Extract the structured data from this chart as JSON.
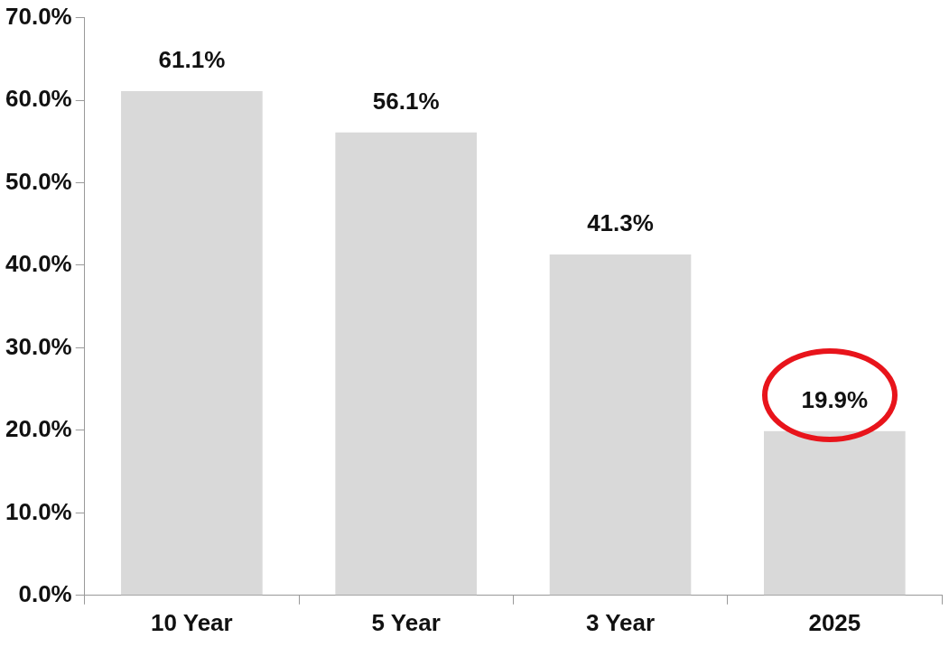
{
  "chart_data": {
    "type": "bar",
    "categories": [
      "10 Year",
      "5 Year",
      "3 Year",
      "2025"
    ],
    "values": [
      61.1,
      56.1,
      41.3,
      19.9
    ],
    "value_labels": [
      "61.1%",
      "56.1%",
      "41.3%",
      "19.9%"
    ],
    "color": "#d9d9d9",
    "ylim": [
      0,
      70
    ],
    "yticks": [
      {
        "value": 0,
        "label": "0.0%"
      },
      {
        "value": 10,
        "label": "10.0%"
      },
      {
        "value": 20,
        "label": "20.0%"
      },
      {
        "value": 30,
        "label": "30.0%"
      },
      {
        "value": 40,
        "label": "40.0%"
      },
      {
        "value": 50,
        "label": "50.0%"
      },
      {
        "value": 60,
        "label": "60.0%"
      },
      {
        "value": 70,
        "label": "70.0%"
      }
    ],
    "grid": false,
    "legend": false
  }
}
